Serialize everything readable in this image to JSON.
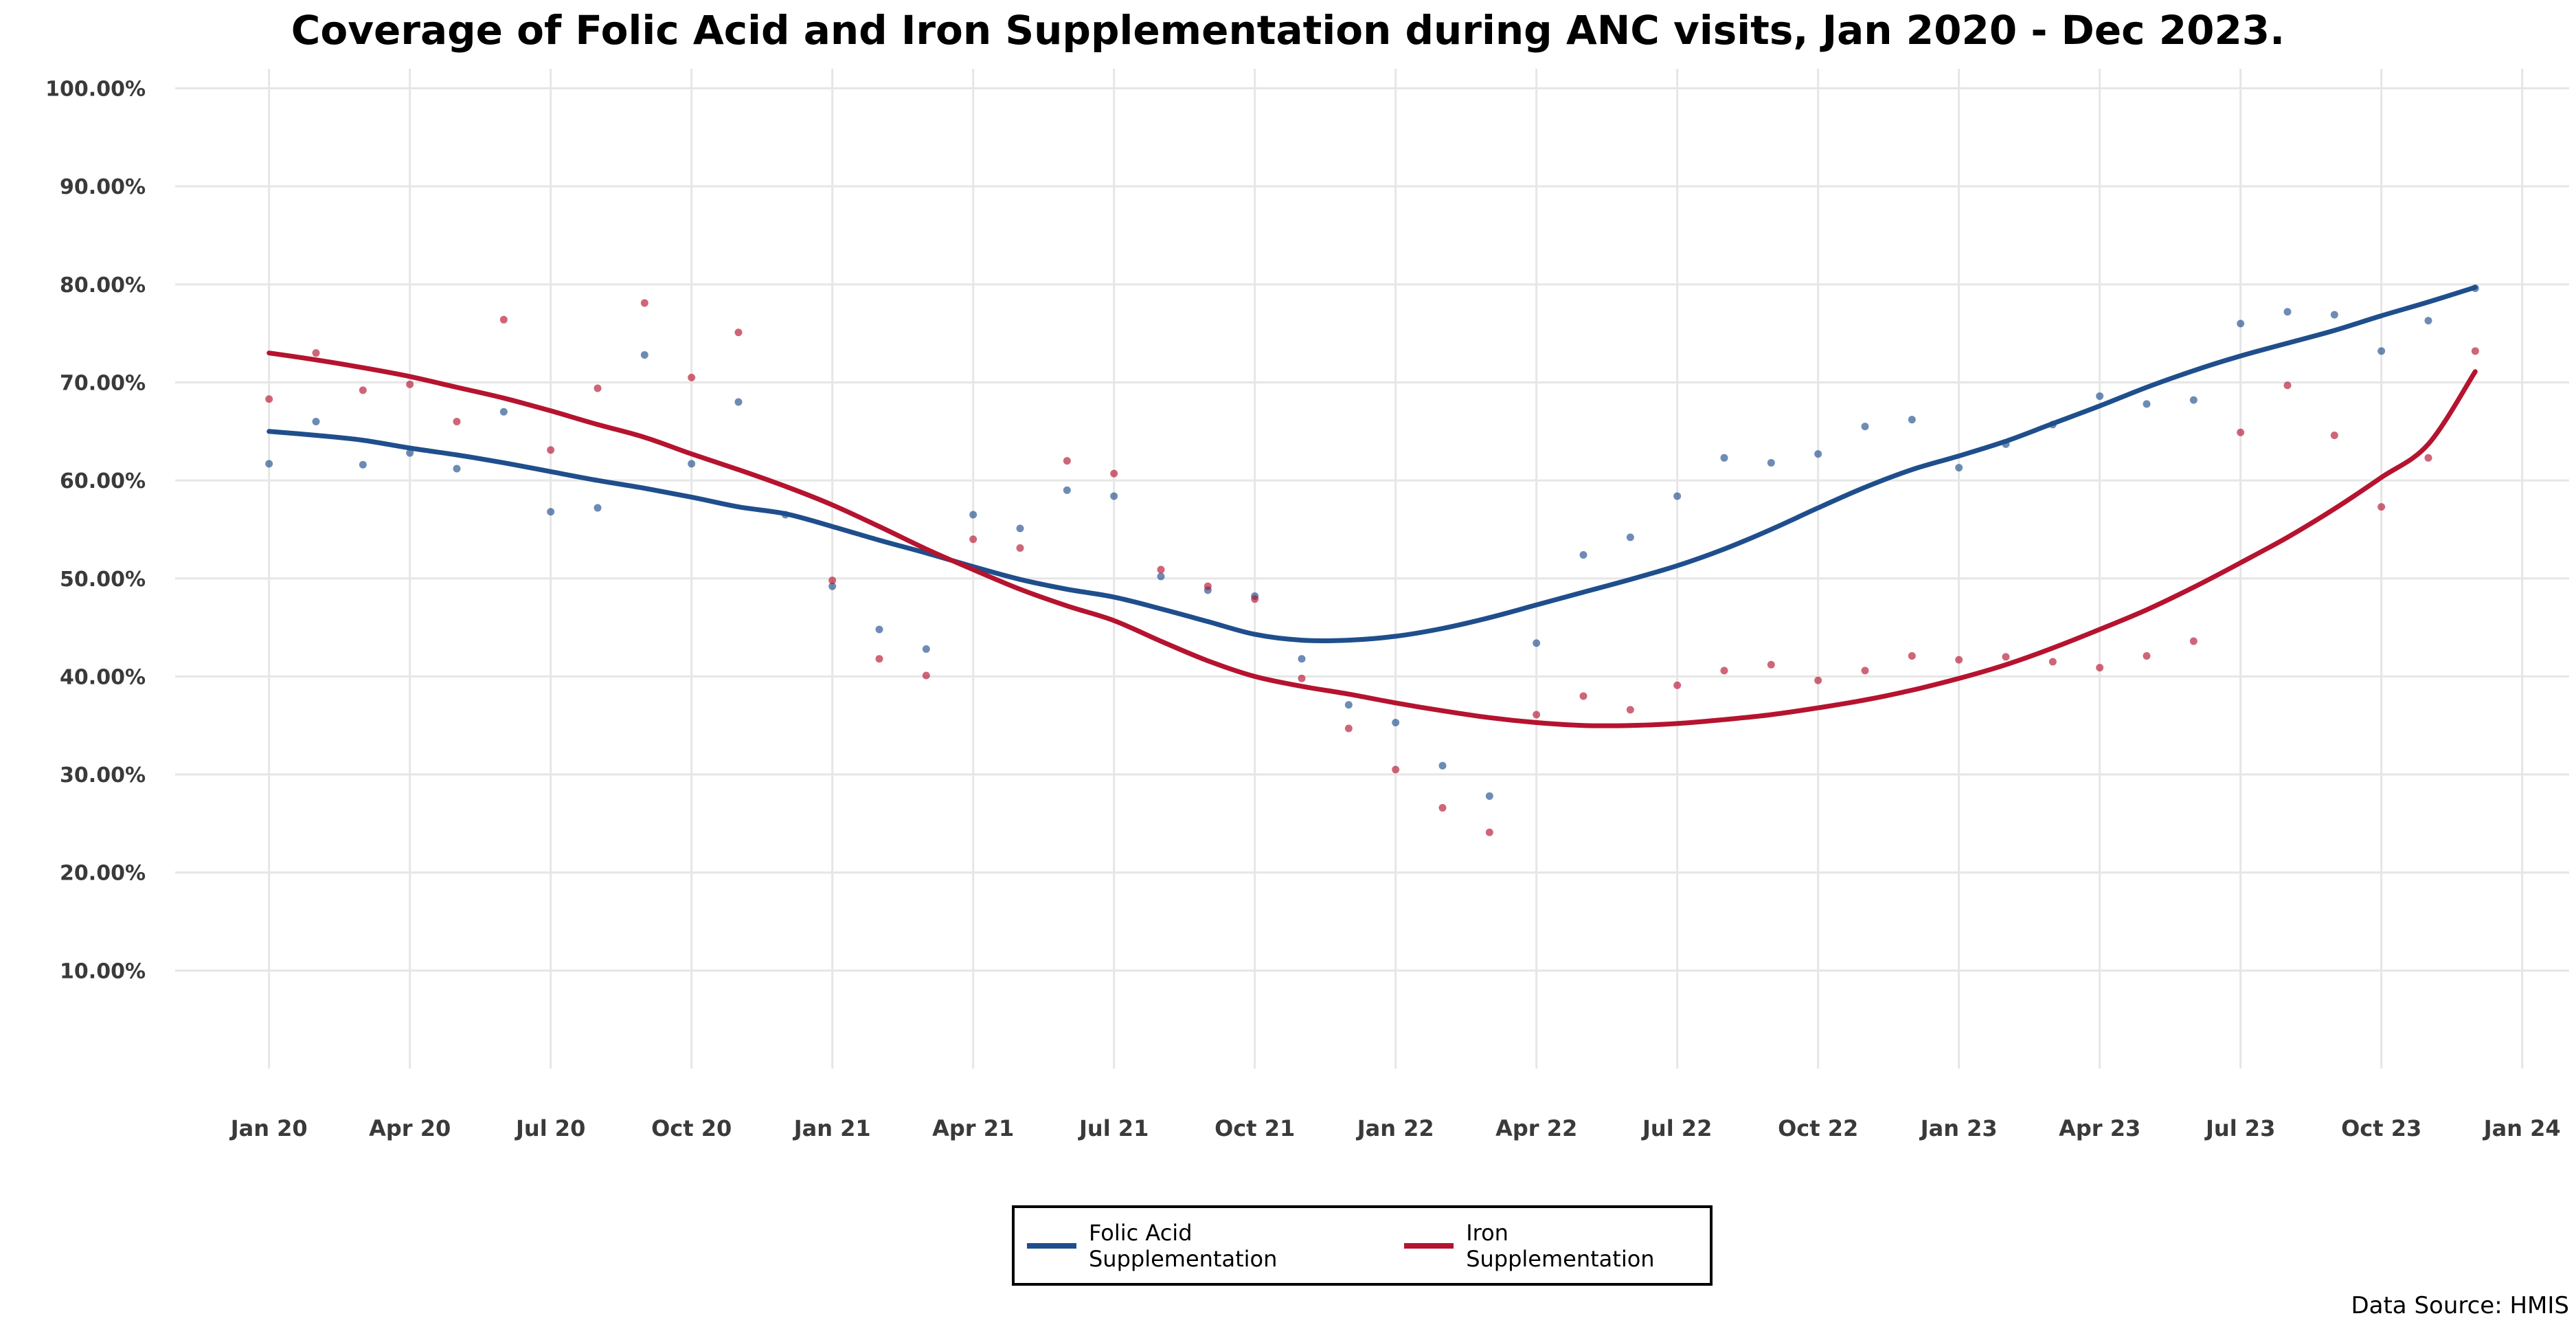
{
  "chart_data": {
    "type": "line",
    "title": "Coverage of Folic Acid and Iron Supplementation during ANC visits, Jan 2020 - Dec 2023.",
    "source": "Data Source: HMIS",
    "x_ticks": [
      "Jan 20",
      "Apr 20",
      "Jul 20",
      "Oct 20",
      "Jan 21",
      "Apr 21",
      "Jul 21",
      "Oct 21",
      "Jan 22",
      "Apr 22",
      "Jul 22",
      "Oct 22",
      "Jan 23",
      "Apr 23",
      "Jul 23",
      "Oct 23",
      "Jan 24"
    ],
    "y_ticks": [
      "10.00%",
      "20.00%",
      "30.00%",
      "40.00%",
      "50.00%",
      "60.00%",
      "70.00%",
      "80.00%",
      "90.00%",
      "100.00%"
    ],
    "ylim": [
      0,
      102
    ],
    "xlim": [
      "2019-11",
      "2024-02"
    ],
    "grid": true,
    "legend_position": "bottom",
    "x": [
      "2020-01",
      "2020-02",
      "2020-03",
      "2020-04",
      "2020-05",
      "2020-06",
      "2020-07",
      "2020-08",
      "2020-09",
      "2020-10",
      "2020-11",
      "2020-12",
      "2021-01",
      "2021-02",
      "2021-03",
      "2021-04",
      "2021-05",
      "2021-06",
      "2021-07",
      "2021-08",
      "2021-09",
      "2021-10",
      "2021-11",
      "2021-12",
      "2022-01",
      "2022-02",
      "2022-03",
      "2022-04",
      "2022-05",
      "2022-06",
      "2022-07",
      "2022-08",
      "2022-09",
      "2022-10",
      "2022-11",
      "2022-12",
      "2023-01",
      "2023-02",
      "2023-03",
      "2023-04",
      "2023-05",
      "2023-06",
      "2023-07",
      "2023-08",
      "2023-09",
      "2023-10",
      "2023-11",
      "2023-12"
    ],
    "series": [
      {
        "name": "Folic Acid Supplementation",
        "color": "#1f4e8c",
        "values": [
          61.7,
          66.0,
          61.6,
          62.8,
          61.2,
          67.0,
          56.8,
          57.2,
          72.8,
          61.7,
          68.0,
          56.5,
          49.2,
          44.8,
          42.8,
          56.5,
          55.1,
          59.0,
          58.4,
          50.2,
          48.8,
          48.2,
          41.8,
          37.1,
          35.3,
          30.9,
          27.8,
          43.4,
          52.4,
          54.2,
          58.4,
          62.3,
          61.8,
          62.7,
          65.5,
          66.2,
          61.3,
          63.7,
          65.7,
          68.6,
          67.8,
          68.2,
          76.0,
          77.2,
          76.9,
          73.2,
          76.3,
          79.6
        ],
        "trend": [
          65.0,
          64.6,
          64.1,
          63.3,
          62.6,
          61.8,
          60.9,
          60.0,
          59.2,
          58.3,
          57.3,
          56.6,
          55.3,
          53.9,
          52.6,
          51.2,
          49.9,
          48.9,
          48.1,
          46.9,
          45.6,
          44.3,
          43.7,
          43.7,
          44.1,
          44.9,
          46.0,
          47.3,
          48.6,
          49.9,
          51.3,
          53.0,
          55.0,
          57.2,
          59.3,
          61.1,
          62.5,
          64.0,
          65.8,
          67.6,
          69.5,
          71.2,
          72.7,
          74.0,
          75.3,
          76.8,
          78.2,
          79.7
        ]
      },
      {
        "name": "Iron Supplementation",
        "color": "#b5132f",
        "values": [
          68.3,
          73.0,
          69.2,
          69.8,
          66.0,
          76.4,
          63.1,
          69.4,
          78.1,
          70.5,
          75.1,
          null,
          49.8,
          41.8,
          40.1,
          54.0,
          53.1,
          62.0,
          60.7,
          50.9,
          49.2,
          47.9,
          39.8,
          34.7,
          30.5,
          26.6,
          24.1,
          36.1,
          38.0,
          36.6,
          39.1,
          40.6,
          41.2,
          39.6,
          40.6,
          42.1,
          41.7,
          42.0,
          41.5,
          40.9,
          42.1,
          43.6,
          64.9,
          69.7,
          64.6,
          57.3,
          62.3,
          73.2
        ],
        "trend": [
          73.0,
          72.3,
          71.5,
          70.6,
          69.5,
          68.4,
          67.1,
          65.7,
          64.4,
          62.7,
          61.1,
          59.4,
          57.5,
          55.3,
          53.0,
          50.9,
          48.9,
          47.2,
          45.7,
          43.6,
          41.6,
          40.0,
          39.0,
          38.2,
          37.3,
          36.5,
          35.8,
          35.3,
          35.0,
          35.0,
          35.2,
          35.6,
          36.1,
          36.8,
          37.6,
          38.6,
          39.8,
          41.2,
          42.9,
          44.8,
          46.8,
          49.1,
          51.6,
          54.2,
          57.1,
          60.3,
          63.7,
          71.1
        ]
      }
    ]
  }
}
